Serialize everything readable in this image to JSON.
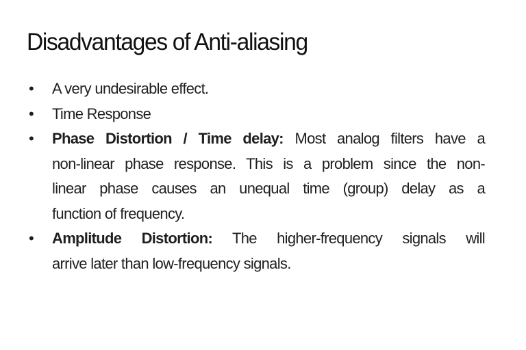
{
  "slide": {
    "title": "Disadvantages of Anti-aliasing",
    "bullet_glyph": "•",
    "items": [
      {
        "lines": [
          {
            "bold": "",
            "rest": "A very undesirable effect."
          }
        ]
      },
      {
        "lines": [
          {
            "bold": "",
            "rest": "Time Response"
          }
        ]
      },
      {
        "lines": [
          {
            "bold": "Phase Distortion / Time delay:",
            "rest": " Most analog filters have a"
          },
          {
            "bold": "",
            "rest": "non-linear phase response. This is a problem since the non-"
          },
          {
            "bold": "",
            "rest": "linear phase causes an unequal time (group) delay as a"
          },
          {
            "bold": "",
            "rest": "function of frequency."
          }
        ]
      },
      {
        "lines": [
          {
            "bold": "Amplitude Distortion:",
            "rest": " The higher-frequency signals will"
          },
          {
            "bold": "",
            "rest": "arrive later than low-frequency signals."
          }
        ]
      }
    ]
  }
}
